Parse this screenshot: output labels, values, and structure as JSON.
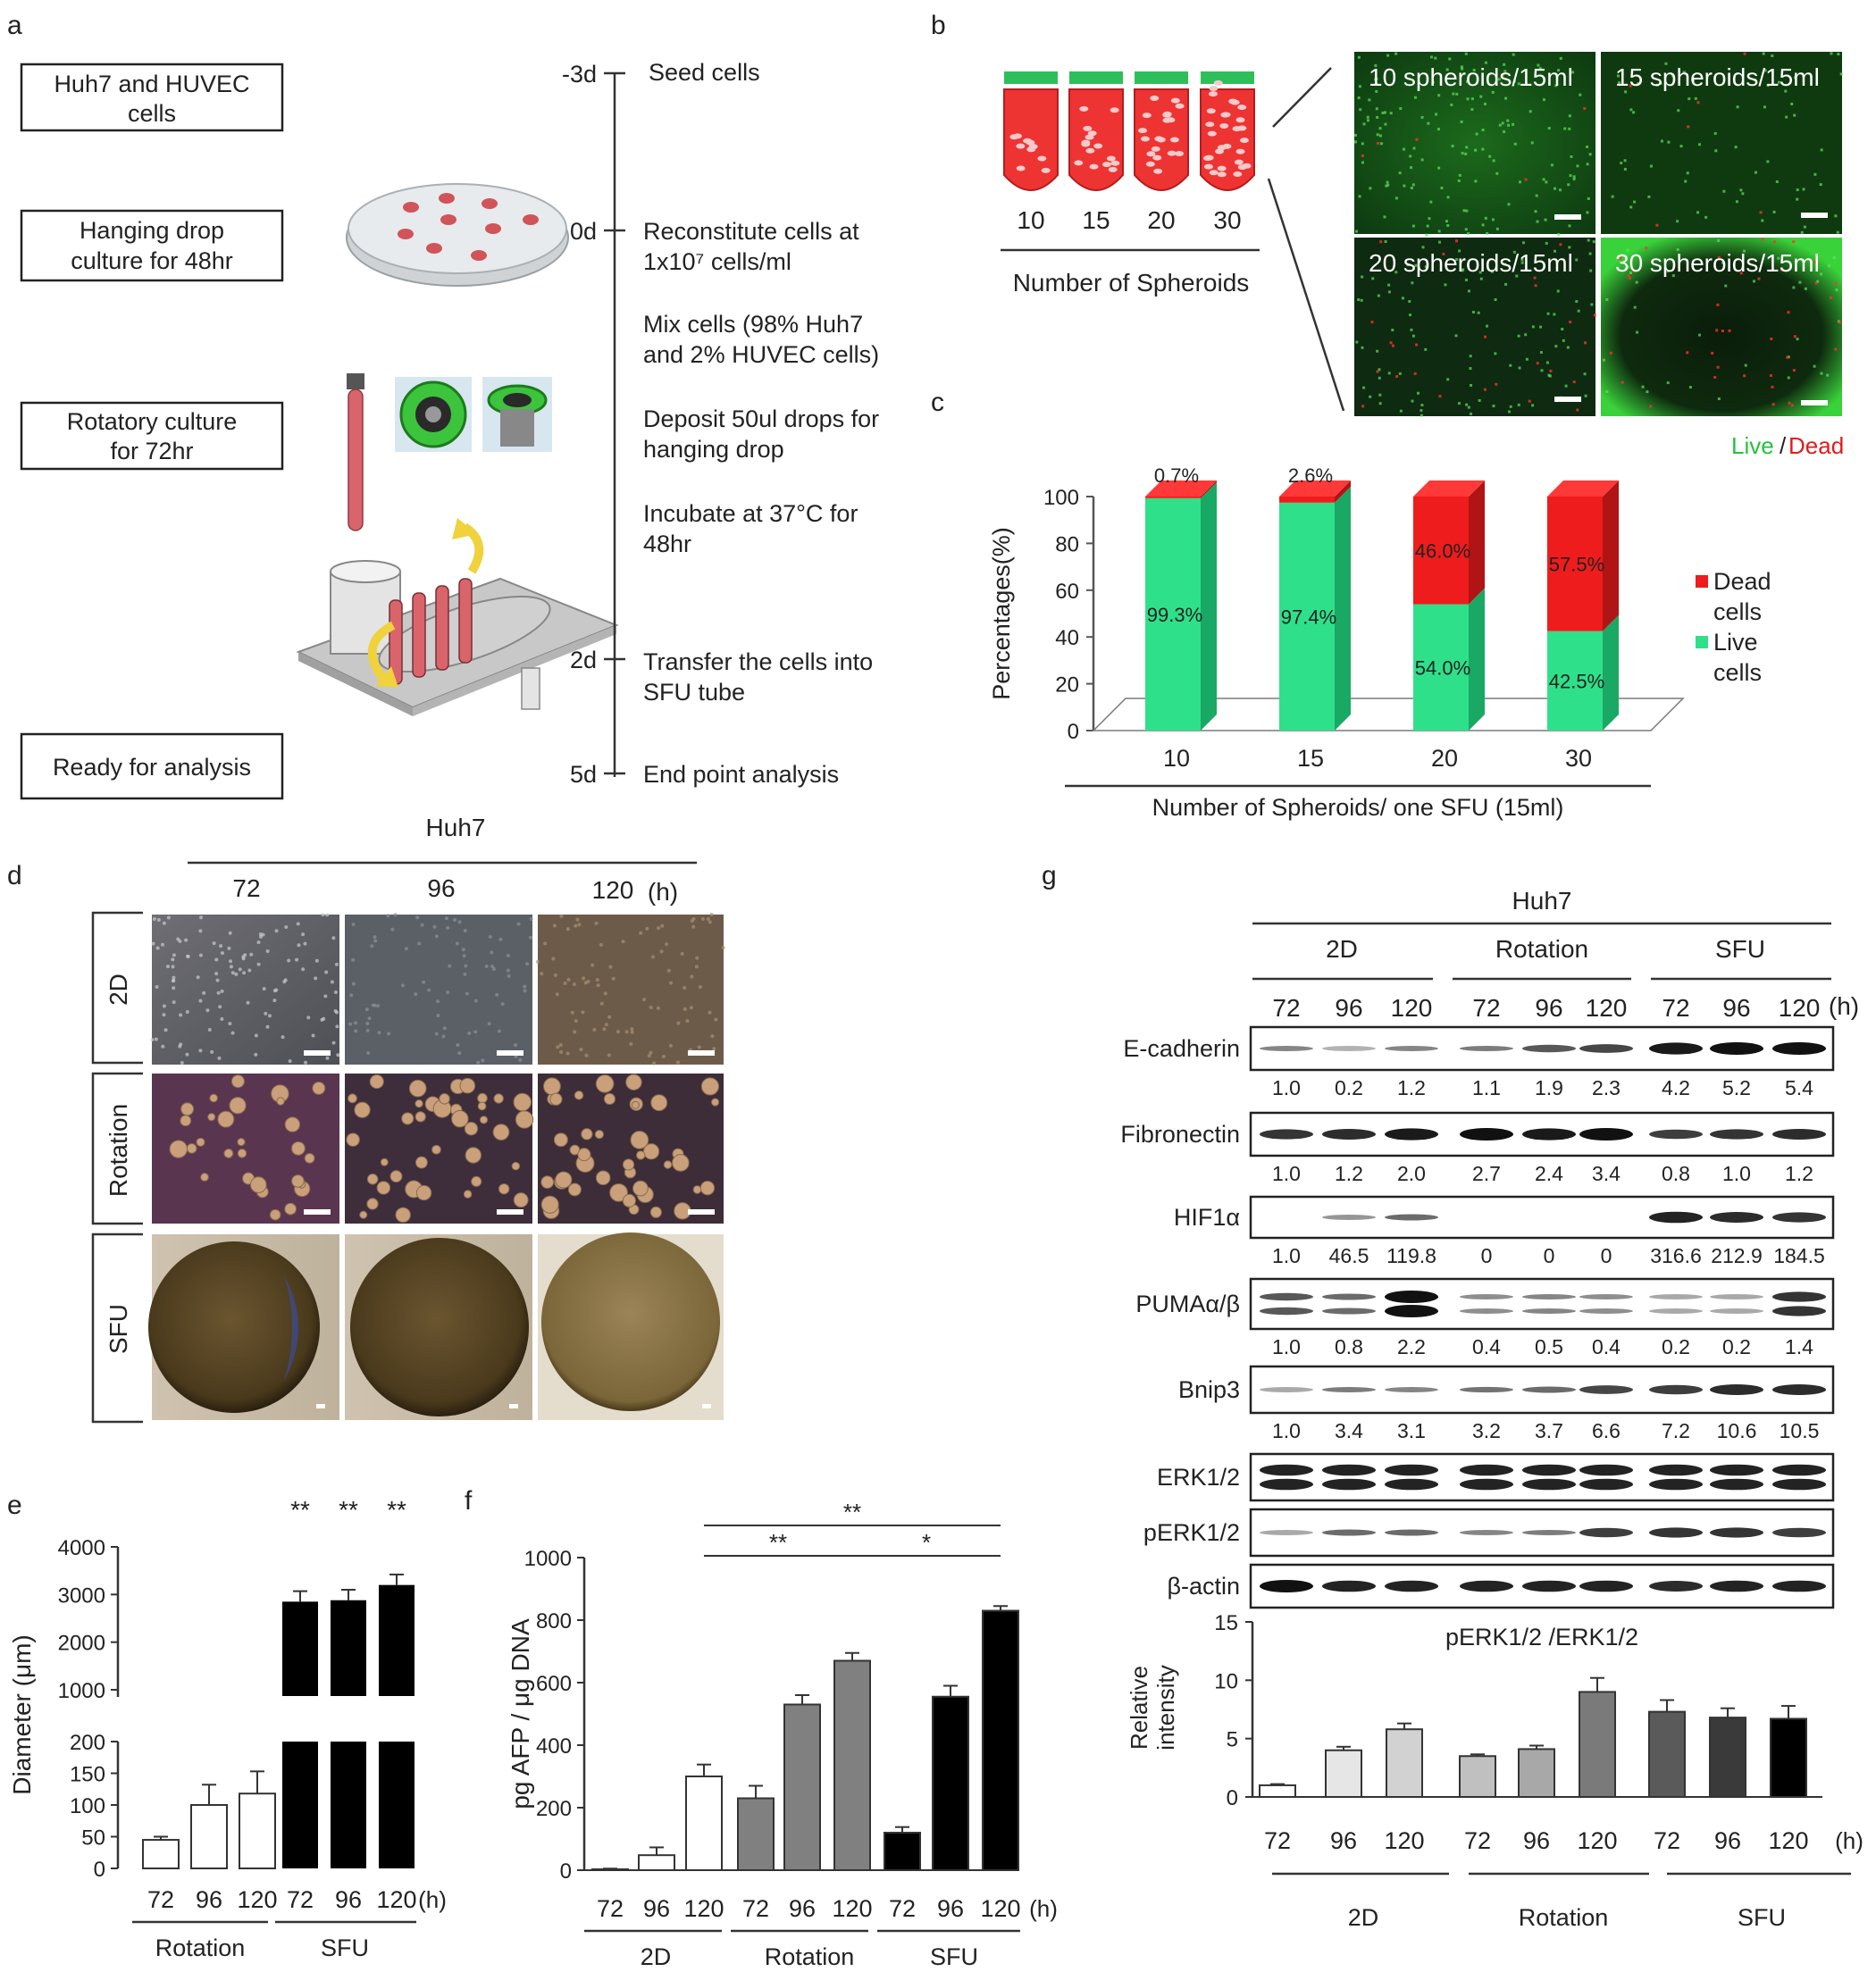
{
  "panel_letters": [
    "a",
    "b",
    "c",
    "d",
    "e",
    "f",
    "g"
  ],
  "a": {
    "steps": [
      "Huh7 and HUVEC cells",
      "Hanging drop culture for 48hr",
      "Rotatory culture for 72hr",
      "Ready for analysis"
    ],
    "timeline": [
      {
        "day": "-3d",
        "text": [
          "Seed cells"
        ]
      },
      {
        "day": "0d",
        "text": [
          "Reconstitute cells at",
          "1x10⁷ cells/ml"
        ]
      },
      {
        "day": "",
        "text": [
          "Mix cells (98% Huh7",
          "and 2% HUVEC cells)"
        ]
      },
      {
        "day": "",
        "text": [
          "Deposit 50ul drops for",
          "hanging drop"
        ]
      },
      {
        "day": "",
        "text": [
          "Incubate at 37°C for",
          "48hr"
        ]
      },
      {
        "day": "2d",
        "text": [
          "Transfer the cells into",
          "SFU tube"
        ]
      },
      {
        "day": "5d",
        "text": [
          "End point analysis"
        ]
      }
    ]
  },
  "b": {
    "tube_labels": [
      "10",
      "15",
      "20",
      "30"
    ],
    "axis_label": "Number of Spheroids",
    "image_labels": [
      "10 spheroids/15ml",
      "15 spheroids/15ml",
      "20 spheroids/15ml",
      "30 spheroids/15ml"
    ],
    "legend_live": "Live",
    "legend_sep": "/",
    "legend_dead": "Dead"
  },
  "d": {
    "cell_line": "Huh7",
    "times": [
      "72",
      "96",
      "120"
    ],
    "unit": "(h)",
    "rows": [
      "2D",
      "Rotation",
      "SFU"
    ]
  },
  "g": {
    "cell_line": "Huh7",
    "groups": [
      "2D",
      "Rotation",
      "SFU"
    ],
    "times": [
      "72",
      "96",
      "120",
      "72",
      "96",
      "120",
      "72",
      "96",
      "120"
    ],
    "unit": "(h)",
    "blots": [
      {
        "name": "E-cadherin",
        "values": [
          "1.0",
          "0.2",
          "1.2",
          "1.1",
          "1.9",
          "2.3",
          "4.2",
          "5.2",
          "5.4"
        ]
      },
      {
        "name": "Fibronectin",
        "values": [
          "1.0",
          "1.2",
          "2.0",
          "2.7",
          "2.4",
          "3.4",
          "0.8",
          "1.0",
          "1.2"
        ]
      },
      {
        "name": "HIF1α",
        "values": [
          "1.0",
          "46.5",
          "119.8",
          "0",
          "0",
          "0",
          "316.6",
          "212.9",
          "184.5"
        ]
      },
      {
        "name": "PUMAα/β",
        "values": [
          "1.0",
          "0.8",
          "2.2",
          "0.4",
          "0.5",
          "0.4",
          "0.2",
          "0.2",
          "1.4"
        ]
      },
      {
        "name": "Bnip3",
        "values": [
          "1.0",
          "3.4",
          "3.1",
          "3.2",
          "3.7",
          "6.6",
          "7.2",
          "10.6",
          "10.5"
        ]
      },
      {
        "name": "ERK1/2",
        "values": []
      },
      {
        "name": "pERK1/2",
        "values": []
      },
      {
        "name": "β-actin",
        "values": []
      }
    ]
  },
  "chart_data": [
    {
      "id": "c",
      "type": "bar",
      "stacked": true,
      "categories": [
        "10",
        "15",
        "20",
        "30"
      ],
      "series": [
        {
          "name": "Live cells",
          "values": [
            99.3,
            97.4,
            54.0,
            42.5
          ],
          "color": "#2fe08a"
        },
        {
          "name": "Dead cells",
          "values": [
            0.7,
            2.6,
            46.0,
            57.5
          ],
          "color": "#ee1c1c"
        }
      ],
      "top_labels": [
        "0.7%",
        "2.6%",
        "",
        ""
      ],
      "value_labels": {
        "Live cells": [
          "99.3%",
          "97.4%",
          "54.0%",
          "42.5%"
        ],
        "Dead cells": [
          "",
          "",
          "46.0%",
          "57.5%"
        ]
      },
      "ylabel": "Percentages(%)",
      "xlabel": "Number of Spheroids/ one SFU (15ml)",
      "yticks": [
        "0",
        "20",
        "40",
        "60",
        "80",
        "100"
      ],
      "ylim": [
        0,
        100
      ],
      "legend": [
        "Dead cells",
        "Live cells"
      ],
      "legend_position": "right"
    },
    {
      "id": "e",
      "type": "bar",
      "broken_axis": true,
      "categories": [
        "72",
        "96",
        "120",
        "72",
        "96",
        "120"
      ],
      "groups": [
        "Rotation",
        "SFU"
      ],
      "values": [
        45,
        100,
        118,
        2850,
        2880,
        3200
      ],
      "errors": [
        5,
        32,
        35,
        220,
        220,
        220
      ],
      "colors": [
        "#ffffff",
        "#ffffff",
        "#ffffff",
        "#000000",
        "#000000",
        "#000000"
      ],
      "significance": [
        "",
        "",
        "",
        "**",
        "**",
        "**"
      ],
      "ylabel": "Diameter (μm)",
      "yticks_low": [
        "0",
        "50",
        "100",
        "150",
        "200"
      ],
      "yticks_high": [
        "1000",
        "2000",
        "3000",
        "4000"
      ],
      "unit": "(h)"
    },
    {
      "id": "f",
      "type": "bar",
      "categories": [
        "72",
        "96",
        "120",
        "72",
        "96",
        "120",
        "72",
        "96",
        "120"
      ],
      "groups": [
        "2D",
        "Rotation",
        "SFU"
      ],
      "values": [
        3,
        48,
        300,
        230,
        530,
        670,
        120,
        555,
        830
      ],
      "errors": [
        2,
        25,
        38,
        40,
        30,
        25,
        18,
        35,
        15
      ],
      "colors": [
        "#ffffff",
        "#ffffff",
        "#ffffff",
        "#808080",
        "#808080",
        "#808080",
        "#000000",
        "#000000",
        "#000000"
      ],
      "ylabel": "pg AFP / μg DNA",
      "yticks": [
        "0",
        "200",
        "400",
        "600",
        "800",
        "1000"
      ],
      "ylim": [
        0,
        1000
      ],
      "brackets": [
        {
          "label": "**",
          "from": 2,
          "to": 8
        },
        {
          "label": "**",
          "from": 2,
          "to": 5
        },
        {
          "label": "*",
          "from": 5,
          "to": 8
        }
      ],
      "unit": "(h)"
    },
    {
      "id": "g-quant",
      "type": "bar",
      "title": "pERK1/2 /ERK1/2",
      "categories": [
        "72",
        "96",
        "120",
        "72",
        "96",
        "120",
        "72",
        "96",
        "120"
      ],
      "groups": [
        "2D",
        "Rotation",
        "SFU"
      ],
      "values": [
        1.0,
        4.0,
        5.8,
        3.5,
        4.1,
        9.0,
        7.3,
        6.8,
        6.7
      ],
      "errors": [
        0.1,
        0.3,
        0.5,
        0.15,
        0.3,
        1.2,
        1.0,
        0.8,
        1.1
      ],
      "colors": [
        "#ffffff",
        "#e6e6e6",
        "#d2d2d2",
        "#c0c0c0",
        "#a8a8a8",
        "#7a7a7a",
        "#5a5a5a",
        "#3a3a3a",
        "#000000"
      ],
      "ylabel": "Relative intensity",
      "yticks": [
        "0",
        "5",
        "10",
        "15"
      ],
      "ylim": [
        0,
        15
      ],
      "unit": "(h)"
    }
  ]
}
